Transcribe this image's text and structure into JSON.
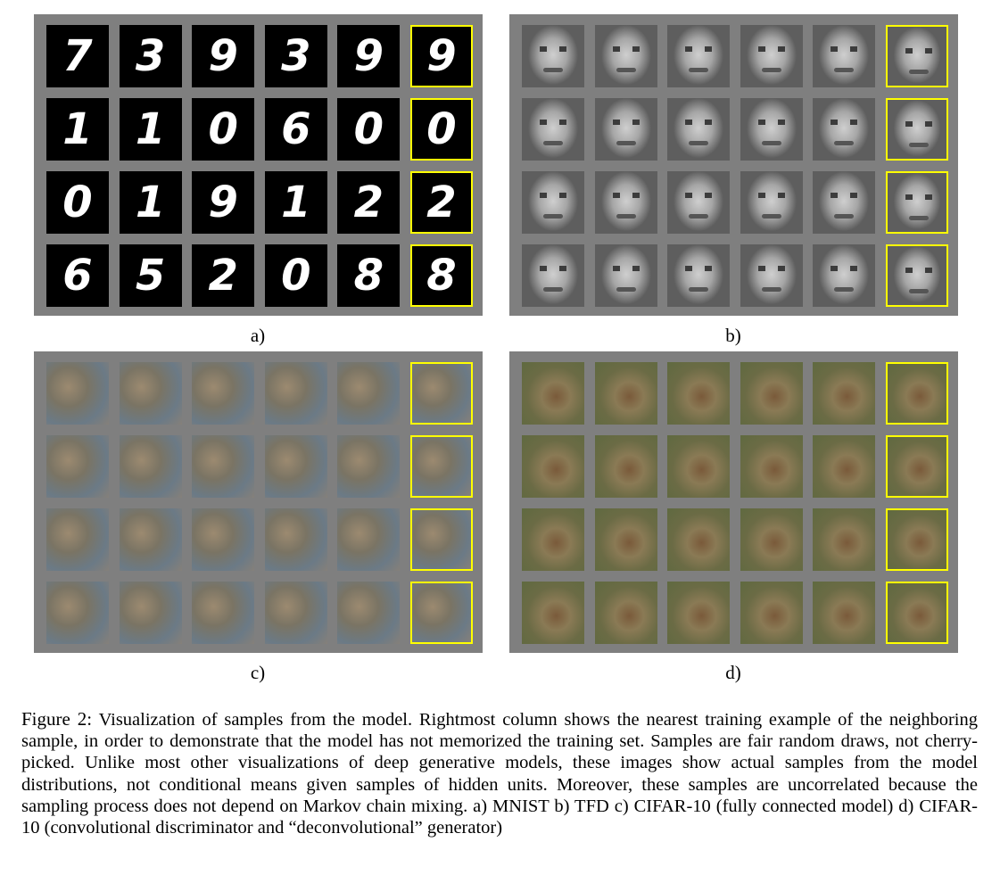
{
  "panels": {
    "a": {
      "label": "a)",
      "dataset": "MNIST",
      "rows": [
        [
          "7",
          "3",
          "9",
          "3",
          "9",
          "9"
        ],
        [
          "1",
          "1",
          "0",
          "6",
          "0",
          "0"
        ],
        [
          "0",
          "1",
          "9",
          "1",
          "2",
          "2"
        ],
        [
          "6",
          "5",
          "2",
          "0",
          "8",
          "8"
        ]
      ]
    },
    "b": {
      "label": "b)",
      "dataset": "TFD"
    },
    "c": {
      "label": "c)",
      "dataset": "CIFAR-10 (fully connected model)"
    },
    "d": {
      "label": "d)",
      "dataset": "CIFAR-10 (convolutional discriminator and “deconvolutional” generator)"
    }
  },
  "highlight_color": "#ffff00",
  "caption": {
    "figure_label": "Figure 2:",
    "text": "Visualization of samples from the model. Rightmost column shows the nearest training example of the neighboring sample, in order to demonstrate that the model has not memorized the training set. Samples are fair random draws, not cherry-picked. Unlike most other visualizations of deep generative models, these images show actual samples from the model distributions, not conditional means given samples of hidden units. Moreover, these samples are uncorrelated because the sampling process does not depend on Markov chain mixing. a) MNIST b) TFD c) CIFAR-10 (fully connected model) d) CIFAR-10 (convolutional discriminator and “deconvolutional” generator)"
  }
}
